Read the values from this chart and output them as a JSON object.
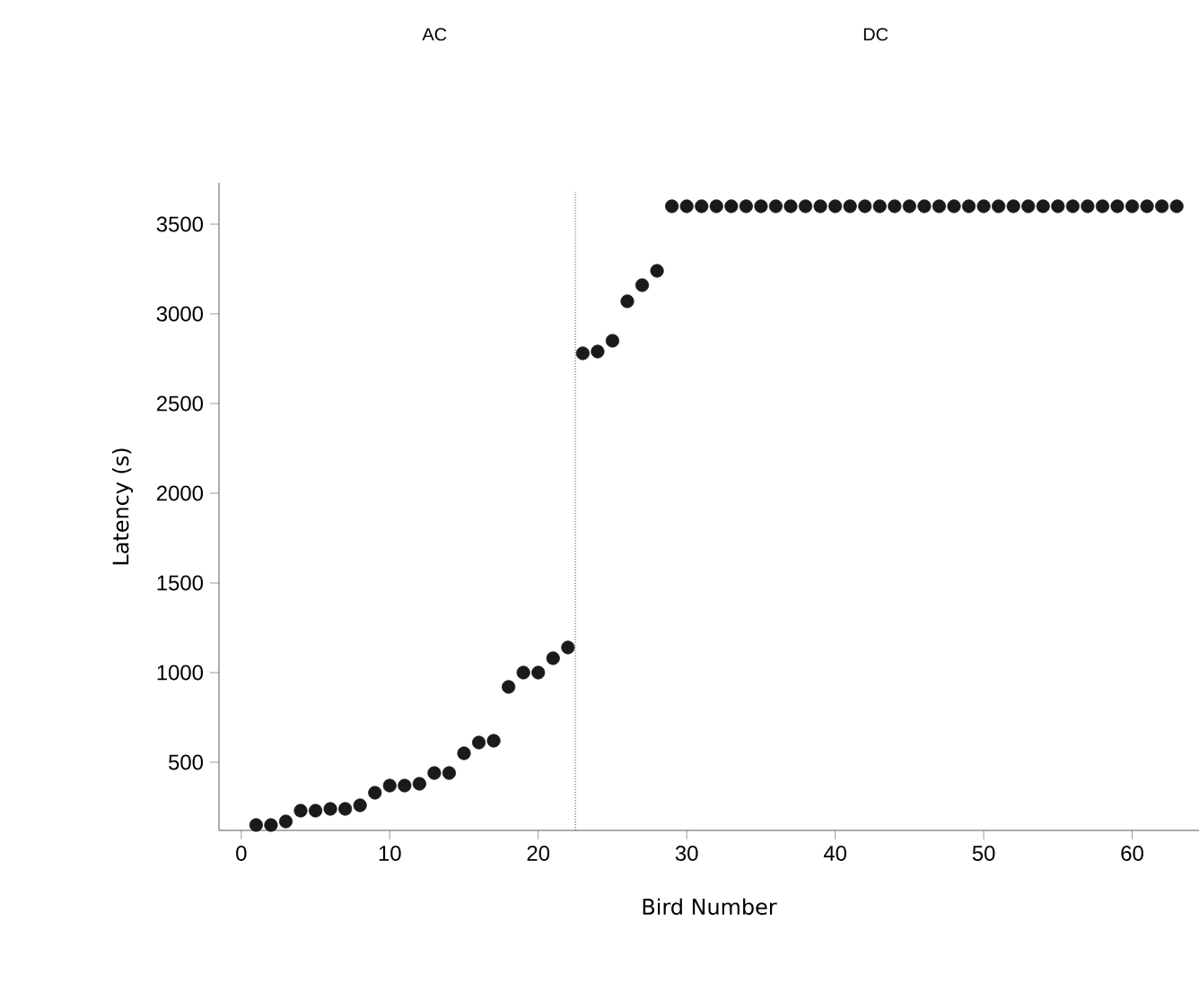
{
  "chart_data": {
    "type": "scatter",
    "xlabel": "Bird Number",
    "ylabel": "Latency (s)",
    "annotations": [
      "AC",
      "DC"
    ],
    "x": [
      1,
      2,
      3,
      4,
      5,
      6,
      7,
      8,
      9,
      10,
      11,
      12,
      13,
      14,
      15,
      16,
      17,
      18,
      19,
      20,
      21,
      22,
      23,
      24,
      25,
      26,
      27,
      28,
      29,
      30,
      31,
      32,
      33,
      34,
      35,
      36,
      37,
      38,
      39,
      40,
      41,
      42,
      43,
      44,
      45,
      46,
      47,
      48,
      49,
      50,
      51,
      52,
      53,
      54,
      55,
      56,
      57,
      58,
      59,
      60,
      61,
      62,
      63
    ],
    "values": [
      150,
      150,
      170,
      230,
      230,
      240,
      240,
      260,
      330,
      370,
      370,
      380,
      440,
      440,
      550,
      610,
      620,
      920,
      1000,
      1000,
      1080,
      1140,
      2780,
      2790,
      2850,
      3070,
      3160,
      3240,
      3600,
      3600,
      3600,
      3600,
      3600,
      3600,
      3600,
      3600,
      3600,
      3600,
      3600,
      3600,
      3600,
      3600,
      3600,
      3600,
      3600,
      3600,
      3600,
      3600,
      3600,
      3600,
      3600,
      3600,
      3600,
      3600,
      3600,
      3600,
      3600,
      3600,
      3600,
      3600,
      3600,
      3600,
      3600
    ],
    "color": "#1a1a1a",
    "xlim": [
      -1.5,
      64.5
    ],
    "ylim": [
      120,
      3730
    ],
    "xticks": [
      0,
      10,
      20,
      30,
      40,
      50,
      60
    ],
    "yticks": [
      500,
      1000,
      1500,
      2000,
      2500,
      3000,
      3500
    ],
    "ref_lines": [
      {
        "axis": "x",
        "value": 22.5,
        "line_style": "dotted",
        "color": "#333333"
      }
    ],
    "grid": false
  }
}
